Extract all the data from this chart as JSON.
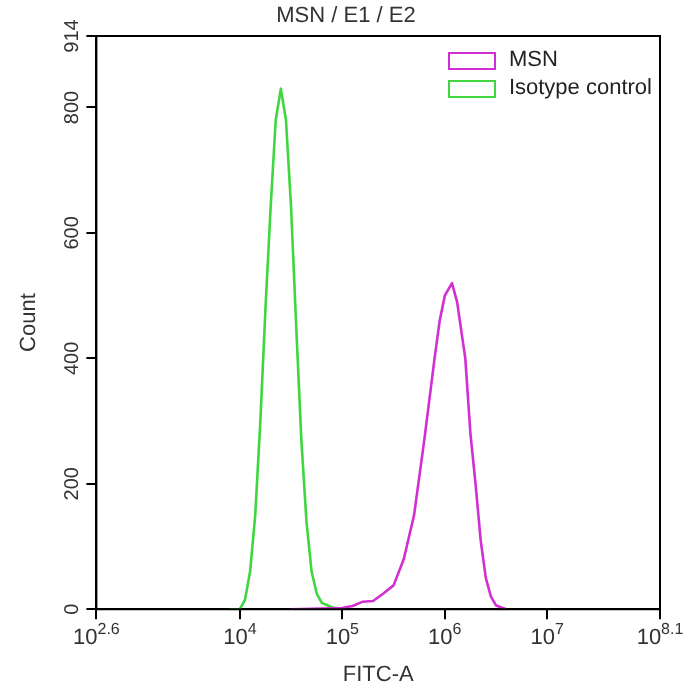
{
  "chart_data": {
    "type": "line",
    "title": "MSN / E1 / E2",
    "xlabel": "FITC-A",
    "ylabel": "Count",
    "log": "x",
    "grid": false,
    "legend": "top right",
    "marker": "none",
    "line_style": "solid",
    "xlim": [
      398.1,
      125892541
    ],
    "ylim": [
      0,
      914
    ],
    "xticks": [
      {
        "value": 398.1,
        "label": "10$^{2.6}$"
      },
      {
        "value": 10000,
        "label": "10$^{4}$"
      },
      {
        "value": 100000,
        "label": "10$^{5}$"
      },
      {
        "value": 1000000,
        "label": "10$^{6}$"
      },
      {
        "value": 10000000,
        "label": "10$^{7}$"
      },
      {
        "value": 125892541,
        "label": "10$^{8.1}$"
      }
    ],
    "yticks": [
      0,
      200,
      400,
      600,
      800,
      914
    ],
    "series": [
      {
        "name": "MSN",
        "color": "#d22fd2",
        "x": [
          31623,
          100000,
          125893,
          158489,
          199526,
          251189,
          316228,
          398107,
          501187,
          630957,
          794328,
          891251,
          1000000,
          1174898,
          1318257,
          1584893,
          1778279,
          1995262,
          2238721,
          2511886,
          2818383,
          3162278,
          3981072
        ],
        "values": [
          0,
          2,
          5,
          12,
          13,
          25,
          38,
          80,
          150,
          270,
          400,
          460,
          500,
          520,
          490,
          400,
          280,
          200,
          110,
          50,
          20,
          6,
          0
        ]
      },
      {
        "name": "Isotype control",
        "color": "#3fd63f",
        "x": [
          7943,
          10000,
          11220,
          12589,
          14125,
          15849,
          17783,
          19953,
          22387,
          25119,
          28184,
          31623,
          35481,
          39811,
          44668,
          50119,
          56234,
          63096,
          79433,
          100000
        ],
        "values": [
          0,
          0,
          15,
          60,
          150,
          300,
          480,
          640,
          780,
          830,
          780,
          640,
          450,
          270,
          140,
          60,
          25,
          10,
          3,
          0
        ]
      }
    ]
  }
}
